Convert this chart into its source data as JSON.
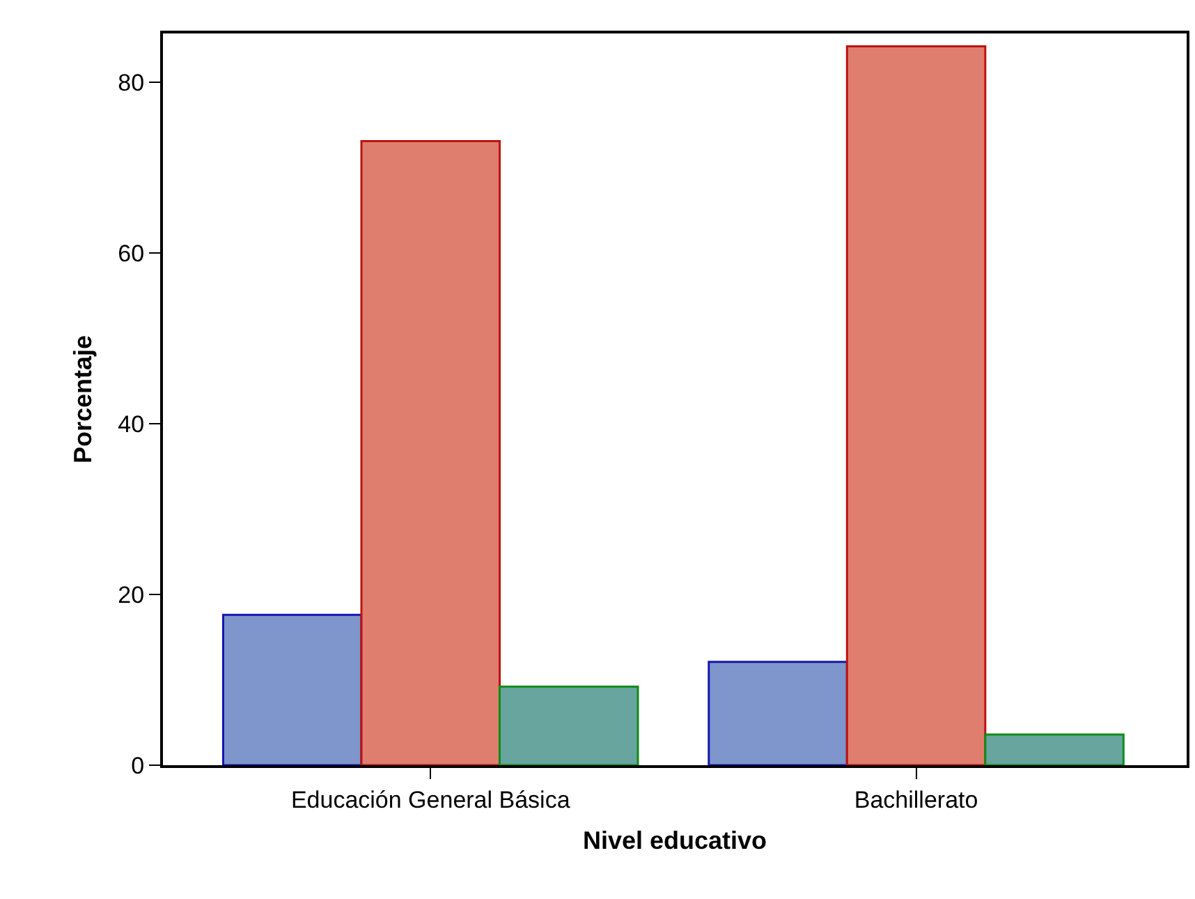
{
  "chart_data": {
    "type": "bar",
    "xlabel": "Nivel educativo",
    "ylabel": "Porcentaje",
    "categories": [
      "Educación General Básica",
      "Bachillerato"
    ],
    "series": [
      {
        "color": "#7f96cc",
        "values": [
          17.6,
          12.1
        ]
      },
      {
        "color": "#df7e6e",
        "values": [
          73.1,
          84.2
        ]
      },
      {
        "color": "#67a59e",
        "values": [
          9.2,
          3.6
        ]
      }
    ],
    "ylim": [
      0,
      85.7
    ],
    "yticks": [
      0,
      20,
      40,
      60,
      80
    ]
  }
}
